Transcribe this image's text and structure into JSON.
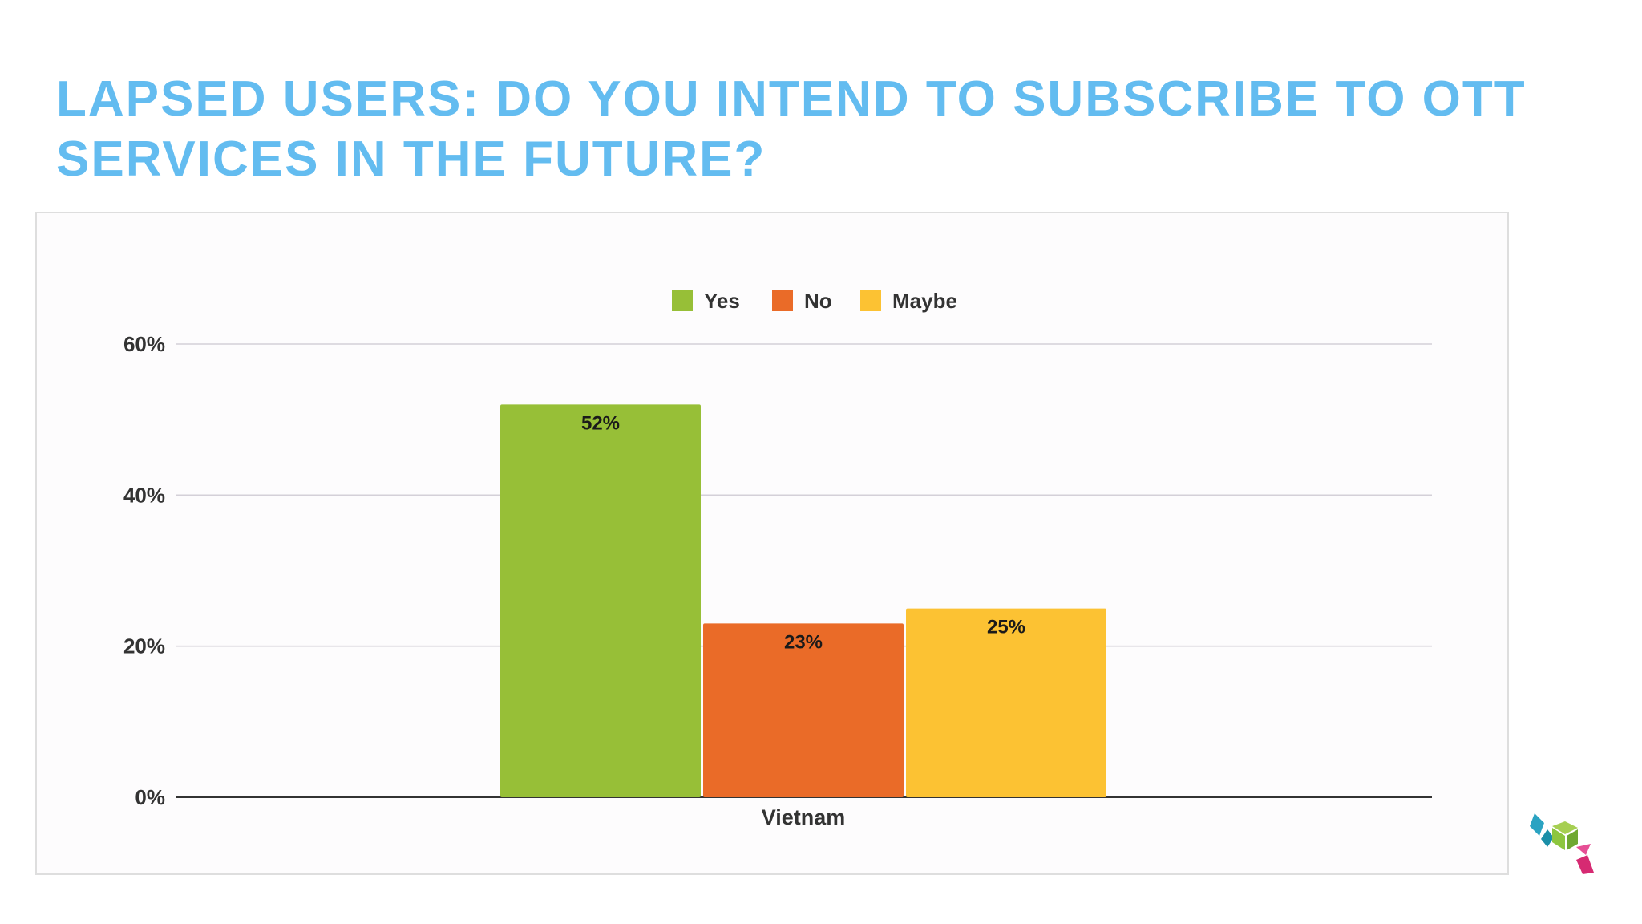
{
  "slide": {
    "title": "LAPSED USERS: DO YOU INTEND TO SUBSCRIBE TO OTT SERVICES IN THE FUTURE?"
  },
  "chart_data": {
    "type": "bar",
    "title": "",
    "xlabel": "",
    "ylabel": "",
    "categories": [
      "Vietnam"
    ],
    "series": [
      {
        "name": "Yes",
        "values": [
          52
        ],
        "color": "#97bf37",
        "label": "52%"
      },
      {
        "name": "No",
        "values": [
          23
        ],
        "color": "#ea6b28",
        "label": "23%"
      },
      {
        "name": "Maybe",
        "values": [
          25
        ],
        "color": "#fcc233",
        "label": "25%"
      }
    ],
    "ylim": [
      0,
      60
    ],
    "yticks": [
      0,
      20,
      40,
      60
    ],
    "ytick_labels": [
      "0%",
      "20%",
      "40%",
      "60%"
    ],
    "grid": true,
    "legend_position": "top-center"
  },
  "logo": {
    "icon": "cube-logo-icon",
    "colors": [
      "#2ba3c2",
      "#8dc63f",
      "#e1307c"
    ]
  }
}
